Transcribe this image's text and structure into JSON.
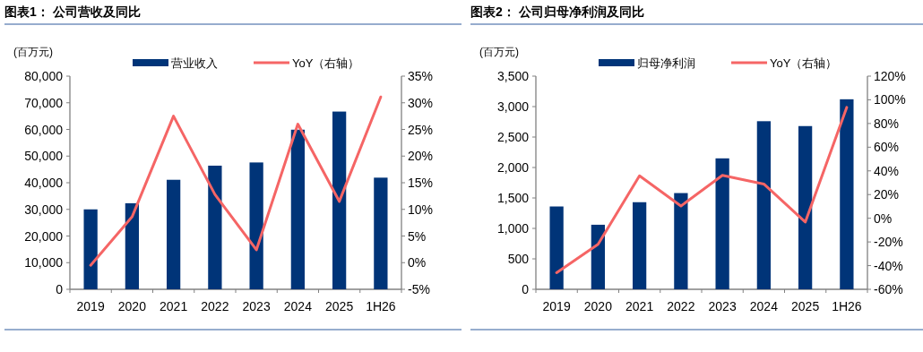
{
  "chart_data": [
    {
      "type": "bar",
      "title": "图表1： 公司营收及同比",
      "ylabel": "(百万元)",
      "legend": "top",
      "grid": false,
      "categories": [
        "2019",
        "2020",
        "2021",
        "2022",
        "2023",
        "2024",
        "2025",
        "1H26"
      ],
      "series": [
        {
          "name": "营业收入",
          "color": "#003478",
          "values": [
            30000,
            32300,
            41100,
            46400,
            47600,
            59900,
            66700,
            41900
          ]
        },
        {
          "name": "YoY（右轴）",
          "type": "line",
          "axis": "y2",
          "color": "#f56565",
          "values": [
            -0.5,
            8.6,
            27.5,
            12.8,
            2.4,
            26.0,
            11.5,
            31.1
          ]
        }
      ],
      "ylim": [
        0,
        80000
      ],
      "yticks": [
        {
          "value": 0,
          "label": "0"
        },
        {
          "value": 10000,
          "label": "10,000"
        },
        {
          "value": 20000,
          "label": "20,000"
        },
        {
          "value": 30000,
          "label": "30,000"
        },
        {
          "value": 40000,
          "label": "40,000"
        },
        {
          "value": 50000,
          "label": "50,000"
        },
        {
          "value": 60000,
          "label": "60,000"
        },
        {
          "value": 70000,
          "label": "70,000"
        },
        {
          "value": 80000,
          "label": "80,000"
        }
      ],
      "y2lim": [
        -5,
        35
      ],
      "y2ticks": [
        {
          "value": -5,
          "label": "-5%"
        },
        {
          "value": 0,
          "label": "0%"
        },
        {
          "value": 5,
          "label": "5%"
        },
        {
          "value": 10,
          "label": "10%"
        },
        {
          "value": 15,
          "label": "15%"
        },
        {
          "value": 20,
          "label": "20%"
        },
        {
          "value": 25,
          "label": "25%"
        },
        {
          "value": 30,
          "label": "30%"
        },
        {
          "value": 35,
          "label": "35%"
        }
      ]
    },
    {
      "type": "bar",
      "title": "图表2： 公司归母净利润及同比",
      "ylabel": "(百万元)",
      "legend": "top",
      "grid": false,
      "categories": [
        "2019",
        "2020",
        "2021",
        "2022",
        "2023",
        "2024",
        "2025",
        "1H26"
      ],
      "series": [
        {
          "name": "归母净利润",
          "color": "#003478",
          "values": [
            1360,
            1060,
            1430,
            1580,
            2150,
            2760,
            2680,
            3120
          ]
        },
        {
          "name": "YoY（右轴）",
          "type": "line",
          "axis": "y2",
          "color": "#f56565",
          "values": [
            -46,
            -22,
            35.8,
            10.3,
            36.2,
            28.9,
            -3.2,
            93.6
          ]
        }
      ],
      "ylim": [
        0,
        3500
      ],
      "yticks": [
        {
          "value": 0,
          "label": "0"
        },
        {
          "value": 500,
          "label": "500"
        },
        {
          "value": 1000,
          "label": "1,000"
        },
        {
          "value": 1500,
          "label": "1,500"
        },
        {
          "value": 2000,
          "label": "2,000"
        },
        {
          "value": 2500,
          "label": "2,500"
        },
        {
          "value": 3000,
          "label": "3,000"
        },
        {
          "value": 3500,
          "label": "3,500"
        }
      ],
      "y2lim": [
        -60,
        120
      ],
      "y2ticks": [
        {
          "value": -60,
          "label": "-60%"
        },
        {
          "value": -40,
          "label": "-40%"
        },
        {
          "value": -20,
          "label": "-20%"
        },
        {
          "value": 0,
          "label": "0%"
        },
        {
          "value": 20,
          "label": "20%"
        },
        {
          "value": 40,
          "label": "40%"
        },
        {
          "value": 60,
          "label": "60%"
        },
        {
          "value": 80,
          "label": "80%"
        },
        {
          "value": 100,
          "label": "100%"
        },
        {
          "value": 120,
          "label": "120%"
        }
      ]
    }
  ]
}
